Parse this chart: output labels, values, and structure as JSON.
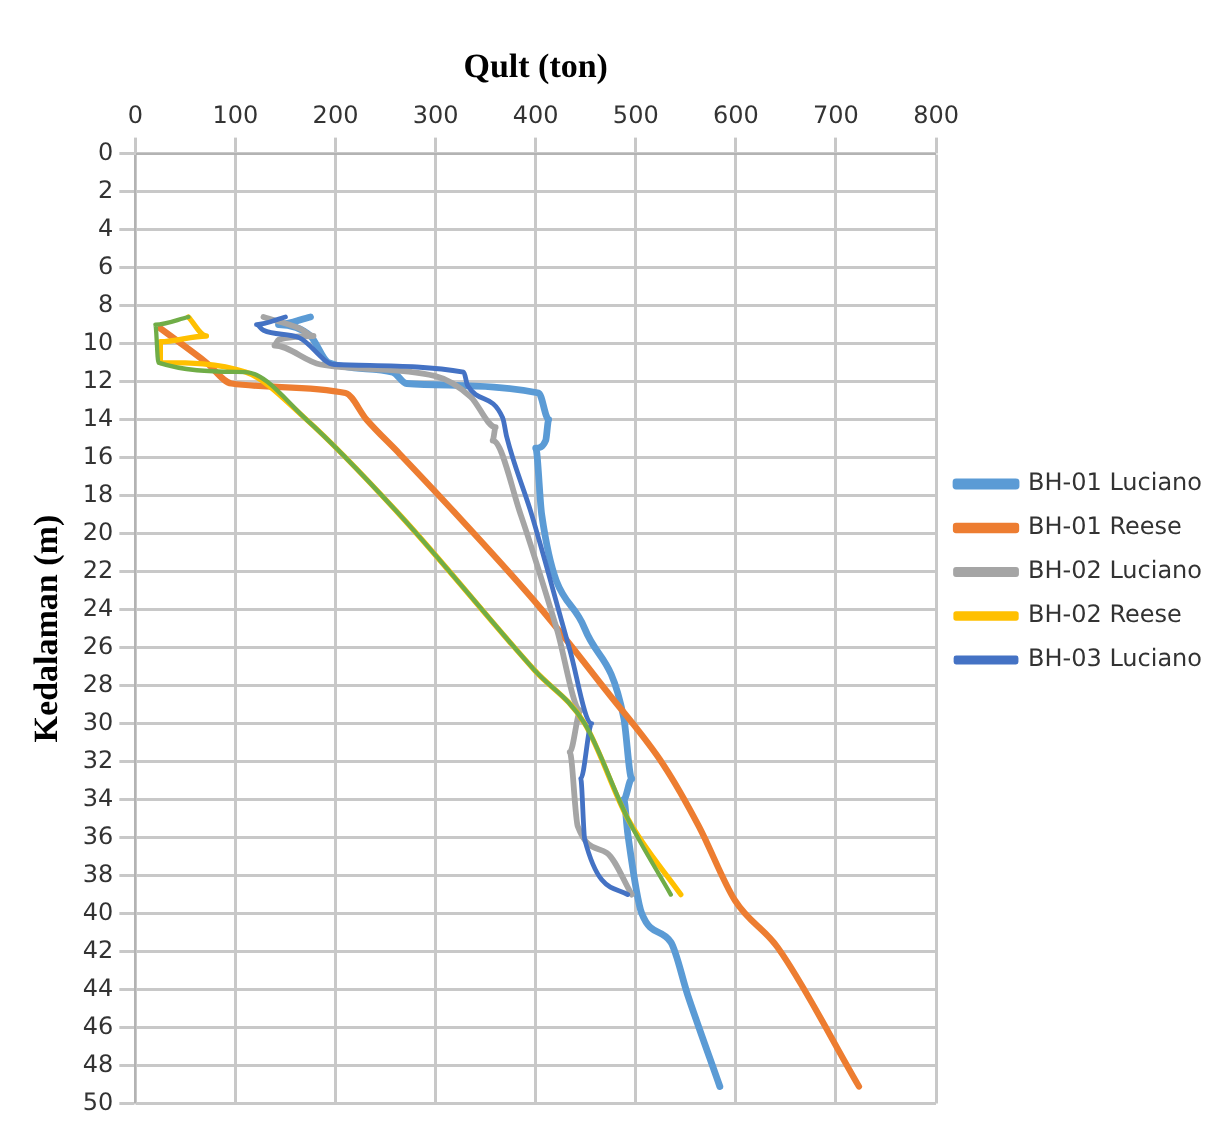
{
  "chart_data": {
    "type": "line",
    "xlabel": "Qult (ton)",
    "ylabel": "Kedalaman (m)",
    "xlim": [
      0,
      800
    ],
    "xticks": [
      0,
      100,
      200,
      300,
      400,
      500,
      600,
      700,
      800
    ],
    "ylim": [
      50,
      0
    ],
    "yticks": [
      0,
      2,
      4,
      6,
      8,
      10,
      12,
      14,
      16,
      18,
      20,
      22,
      24,
      26,
      28,
      30,
      32,
      34,
      36,
      38,
      40,
      42,
      44,
      46,
      48,
      50
    ],
    "grid": true,
    "legend": "right",
    "marker": "none",
    "series": [
      {
        "name": "BH-01 Luciano",
        "color": "#5b9bd5",
        "x": [
          175,
          143,
          175,
          193,
          257,
          271,
          403,
          413,
          410,
          400,
          406,
          449,
          488,
          496,
          488,
          492,
          506,
          535,
          552,
          584
        ],
        "values": [
          8.6,
          9.0,
          9.6,
          11.0,
          11.5,
          12.1,
          12.6,
          14.0,
          15.1,
          15.5,
          19,
          25,
          29.7,
          32.9,
          34,
          35.8,
          40,
          41.5,
          44.3,
          49.1
        ]
      },
      {
        "name": "BH-01 Reese",
        "color": "#ed7d31",
        "x": [
          25,
          71,
          96,
          210,
          231,
          264,
          321,
          406,
          471,
          528,
          563,
          599,
          642,
          723
        ],
        "values": [
          9.2,
          11,
          12.1,
          12.6,
          14,
          15.8,
          19,
          24,
          28.3,
          32.2,
          35.4,
          39.3,
          41.8,
          49.1
        ]
      },
      {
        "name": "BH-02 Luciano",
        "color": "#a5a5a5",
        "x": [
          128,
          164,
          178,
          143,
          139,
          185,
          299,
          335,
          360,
          357,
          385,
          421,
          445,
          434,
          442,
          471,
          496
        ],
        "values": [
          8.6,
          9.2,
          9.6,
          9.8,
          10.1,
          11.1,
          11.7,
          12.8,
          14.4,
          15.1,
          19,
          25,
          29.3,
          31.5,
          35.4,
          36.8,
          39
        ]
      },
      {
        "name": "BH-02 Reese",
        "color": "#ffc000",
        "x": [
          53,
          71,
          25,
          25,
          110,
          171,
          264,
          399,
          449,
          492,
          545
        ],
        "values": [
          8.6,
          9.6,
          9.9,
          11,
          11.5,
          14,
          19,
          27.2,
          30,
          35,
          39
        ]
      },
      {
        "name": "BH-03 Luciano",
        "color": "#4472c4",
        "x": [
          150,
          121,
          128,
          164,
          199,
          328,
          332,
          367,
          371,
          396,
          434,
          456,
          445,
          449,
          492
        ],
        "values": [
          8.6,
          9.0,
          9.3,
          9.7,
          11.1,
          11.5,
          12.2,
          13.9,
          14.9,
          19,
          26.1,
          30,
          32.9,
          36.1,
          39
        ]
      },
      {
        "color": "#70ad47",
        "x": [
          53,
          20,
          23,
          110,
          171,
          264,
          399,
          449,
          492,
          535
        ],
        "values": [
          8.6,
          9.0,
          11,
          11.5,
          14,
          19,
          27.2,
          30,
          35,
          39
        ]
      }
    ]
  }
}
